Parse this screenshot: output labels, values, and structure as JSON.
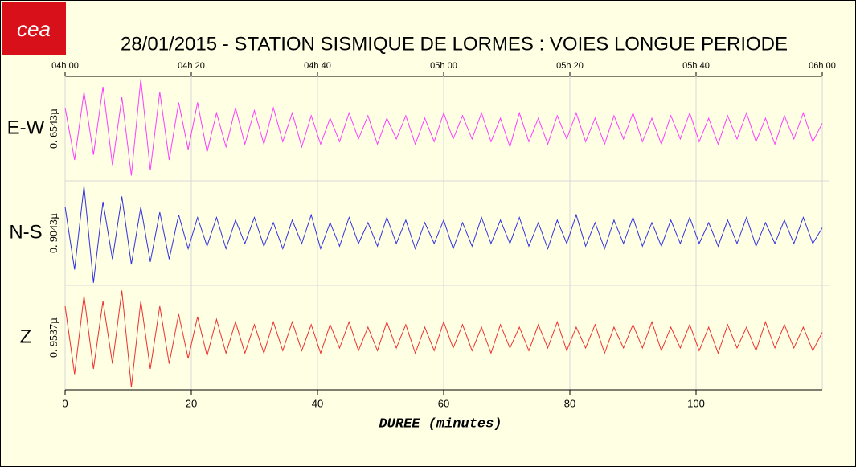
{
  "chart_data": {
    "type": "seismogram",
    "logo": "cea",
    "title": "28/01/2015  -  STATION SISMIQUE DE LORMES : VOIES LONGUE PERIODE",
    "xlabel": "DUREE (minutes)",
    "xlim": [
      0,
      120
    ],
    "xticks": [
      0,
      20,
      40,
      60,
      80,
      100
    ],
    "top_xticks": [
      {
        "value": 0,
        "label": "04h 00"
      },
      {
        "value": 20,
        "label": "04h 20"
      },
      {
        "value": 40,
        "label": "04h 40"
      },
      {
        "value": 60,
        "label": "05h 00"
      },
      {
        "value": 80,
        "label": "05h 20"
      },
      {
        "value": 100,
        "label": "05h 40"
      },
      {
        "value": 120,
        "label": "06h 00"
      }
    ],
    "grid": true,
    "x": [
      0,
      1.5,
      3,
      4.5,
      6,
      7.5,
      9,
      10.5,
      12,
      13.5,
      15,
      16.5,
      18,
      19.5,
      21,
      22.5,
      24,
      25.5,
      27,
      28.5,
      30,
      31.5,
      33,
      34.5,
      36,
      37.5,
      39,
      40.5,
      42,
      43.5,
      45,
      46.5,
      48,
      49.5,
      51,
      52.5,
      54,
      55.5,
      57,
      58.5,
      60,
      61.5,
      63,
      64.5,
      66,
      67.5,
      69,
      70.5,
      72,
      73.5,
      75,
      76.5,
      78,
      79.5,
      81,
      82.5,
      84,
      85.5,
      87,
      88.5,
      90,
      91.5,
      93,
      94.5,
      96,
      97.5,
      99,
      100.5,
      102,
      103.5,
      105,
      106.5,
      108,
      109.5,
      111,
      112.5,
      114,
      115.5,
      117,
      118.5,
      120
    ],
    "series": [
      {
        "name": "E-W",
        "scale_label": "0. 6543µ",
        "color": "#ff3cff",
        "ylim": [
          -1,
          1
        ],
        "values": [
          0.4,
          -0.6,
          0.7,
          -0.5,
          0.8,
          -0.7,
          0.6,
          -0.9,
          0.95,
          -0.8,
          0.7,
          -0.6,
          0.5,
          -0.4,
          0.5,
          -0.45,
          0.3,
          -0.35,
          0.4,
          -0.3,
          0.35,
          -0.3,
          0.4,
          -0.25,
          0.3,
          -0.35,
          0.25,
          -0.3,
          0.2,
          -0.25,
          0.3,
          -0.2,
          0.25,
          -0.3,
          0.2,
          -0.2,
          0.25,
          -0.3,
          0.2,
          -0.25,
          0.3,
          -0.2,
          0.25,
          -0.2,
          0.3,
          -0.25,
          0.2,
          -0.35,
          0.3,
          -0.25,
          0.2,
          -0.3,
          0.25,
          -0.2,
          0.3,
          -0.25,
          0.2,
          -0.3,
          0.25,
          -0.2,
          0.3,
          -0.25,
          0.2,
          -0.3,
          0.25,
          -0.2,
          0.3,
          -0.25,
          0.2,
          -0.3,
          0.25,
          -0.2,
          0.3,
          -0.25,
          0.2,
          -0.3,
          0.25,
          -0.2,
          0.3,
          -0.25,
          0.1
        ]
      },
      {
        "name": "N-S",
        "scale_label": "0. 9043µ",
        "color": "#3232e0",
        "ylim": [
          -1,
          1
        ],
        "values": [
          0.5,
          -0.7,
          0.9,
          -0.95,
          0.6,
          -0.5,
          0.7,
          -0.6,
          0.5,
          -0.55,
          0.4,
          -0.5,
          0.35,
          -0.3,
          0.3,
          -0.25,
          0.3,
          -0.3,
          0.25,
          -0.2,
          0.3,
          -0.25,
          0.2,
          -0.3,
          0.25,
          -0.2,
          0.35,
          -0.3,
          0.2,
          -0.25,
          0.3,
          -0.2,
          0.2,
          -0.25,
          0.3,
          -0.2,
          0.25,
          -0.3,
          0.2,
          -0.2,
          0.25,
          -0.3,
          0.2,
          -0.25,
          0.3,
          -0.2,
          0.25,
          -0.2,
          0.3,
          -0.25,
          0.2,
          -0.3,
          0.25,
          -0.2,
          0.35,
          -0.25,
          0.2,
          -0.3,
          0.25,
          -0.2,
          0.3,
          -0.25,
          0.2,
          -0.25,
          0.25,
          -0.2,
          0.3,
          -0.2,
          0.2,
          -0.25,
          0.25,
          -0.2,
          0.3,
          -0.25,
          0.2,
          -0.2,
          0.25,
          -0.2,
          0.3,
          -0.2,
          0.1
        ]
      },
      {
        "name": "Z",
        "scale_label": "0. 9537µ",
        "color": "#ee3030",
        "ylim": [
          -1,
          1
        ],
        "values": [
          0.6,
          -0.7,
          0.8,
          -0.6,
          0.7,
          -0.5,
          0.9,
          -0.95,
          0.7,
          -0.6,
          0.6,
          -0.5,
          0.45,
          -0.4,
          0.4,
          -0.35,
          0.35,
          -0.3,
          0.3,
          -0.3,
          0.25,
          -0.3,
          0.3,
          -0.25,
          0.3,
          -0.25,
          0.25,
          -0.3,
          0.25,
          -0.2,
          0.3,
          -0.25,
          0.2,
          -0.25,
          0.3,
          -0.2,
          0.25,
          -0.3,
          0.2,
          -0.25,
          0.3,
          -0.2,
          0.25,
          -0.25,
          0.2,
          -0.3,
          0.25,
          -0.2,
          0.2,
          -0.25,
          0.25,
          -0.2,
          0.3,
          -0.25,
          0.2,
          -0.2,
          0.25,
          -0.3,
          0.2,
          -0.2,
          0.25,
          -0.2,
          0.3,
          -0.25,
          0.2,
          -0.2,
          0.25,
          -0.25,
          0.2,
          -0.3,
          0.25,
          -0.2,
          0.2,
          -0.25,
          0.3,
          -0.2,
          0.25,
          -0.2,
          0.2,
          -0.25,
          0.1
        ]
      }
    ]
  }
}
